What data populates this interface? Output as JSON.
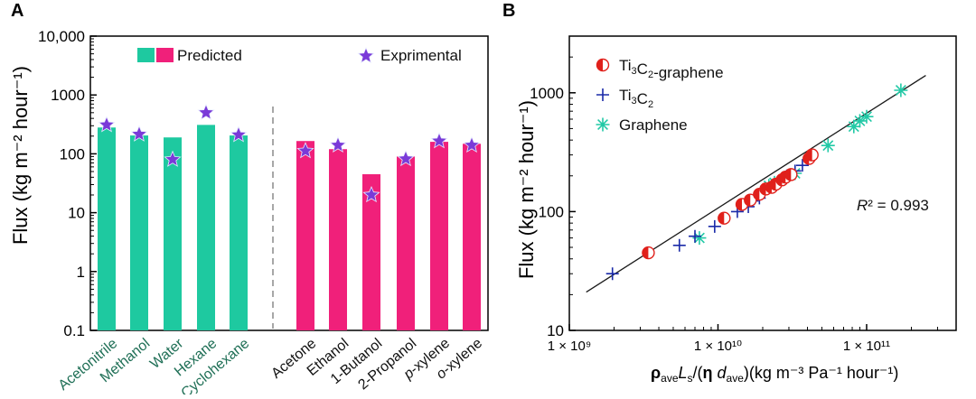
{
  "chart_data": [
    {
      "panel": "A",
      "type": "bar",
      "yscale": "log",
      "ylim": [
        0.1,
        10000
      ],
      "ylabel": "Flux (kg m⁻² hour⁻¹)",
      "yticks": [
        "0.1",
        "1",
        "10",
        "100",
        "1000",
        "10,000"
      ],
      "legend": {
        "predicted": "Predicted",
        "experimental": "Exprimental"
      },
      "colors": {
        "groupA": "#1ec9a0",
        "groupB": "#f0207a",
        "star": "#7a3ad8",
        "star_edge": "#e7ecff",
        "dash": "#8a8a8a",
        "label_groupA": "#1f6f56"
      },
      "categories": [
        "Acetonitrile",
        "Methanol",
        "Water",
        "Hexane",
        "Cyclohexane",
        "Acetone",
        "Ethanol",
        "1-Butanol",
        "2-Propanol",
        "p-xylene",
        "o-xylene"
      ],
      "groups": [
        "A",
        "A",
        "A",
        "A",
        "A",
        "B",
        "B",
        "B",
        "B",
        "B",
        "B"
      ],
      "series": [
        {
          "name": "Predicted",
          "values": [
            280,
            205,
            190,
            310,
            205,
            165,
            120,
            45,
            90,
            160,
            148
          ]
        },
        {
          "name": "Exprimental",
          "values": [
            310,
            215,
            80,
            500,
            210,
            112,
            140,
            20,
            82,
            165,
            140
          ]
        }
      ]
    },
    {
      "panel": "B",
      "type": "scatter",
      "xscale": "log",
      "yscale": "log",
      "xlim": [
        1000000000,
        400000000000
      ],
      "ylim": [
        10,
        3000
      ],
      "xticks": [
        "1 × 10⁹",
        "1 × 10¹⁰",
        "1 × 10¹¹"
      ],
      "yticks": [
        "10",
        "100",
        "1000"
      ],
      "ylabel": "Flux (kg m⁻² hour⁻¹)",
      "xlabel": "ρave Ls/(η dave)(kg m⁻³ Pa⁻¹ hour⁻¹)",
      "annotation": "R² = 0.993",
      "colors": {
        "ti3c2_graphene": "#e0201b",
        "ti3c2": "#1a2aa8",
        "graphene": "#22c9a6",
        "fit": "#1a1a1a"
      },
      "fit_line": [
        [
          1300000000,
          21
        ],
        [
          250000000000,
          1400
        ]
      ],
      "series": [
        {
          "name": "Ti3C2-graphene",
          "marker": "half-circle",
          "points": [
            [
              3400000000,
              45
            ],
            [
              11000000000,
              88
            ],
            [
              14500000000,
              115
            ],
            [
              16500000000,
              125
            ],
            [
              19000000000,
              140
            ],
            [
              21000000000,
              155
            ],
            [
              23000000000,
              160
            ],
            [
              24500000000,
              170
            ],
            [
              27000000000,
              185
            ],
            [
              28500000000,
              195
            ],
            [
              31000000000,
              205
            ],
            [
              41000000000,
              280
            ],
            [
              43000000000,
              300
            ]
          ]
        },
        {
          "name": "Ti3C2",
          "marker": "plus",
          "points": [
            [
              1950000000,
              30
            ],
            [
              5500000000,
              52
            ],
            [
              7000000000,
              62
            ],
            [
              9500000000,
              75
            ],
            [
              13500000000,
              100
            ],
            [
              16000000000,
              110
            ],
            [
              17000000000,
              123
            ],
            [
              19000000000,
              130
            ],
            [
              26000000000,
              180
            ],
            [
              29000000000,
              200
            ],
            [
              33000000000,
              220
            ],
            [
              37000000000,
              245
            ]
          ]
        },
        {
          "name": "Graphene",
          "marker": "asterisk",
          "points": [
            [
              7500000000,
              60
            ],
            [
              22000000000,
              165
            ],
            [
              24000000000,
              175
            ],
            [
              33000000000,
              210
            ],
            [
              55000000000,
              360
            ],
            [
              82000000000,
              520
            ],
            [
              90000000000,
              580
            ],
            [
              100000000000,
              630
            ],
            [
              170000000000,
              1050
            ]
          ]
        }
      ]
    }
  ],
  "panel_labels": {
    "a": "A",
    "b": "B"
  }
}
